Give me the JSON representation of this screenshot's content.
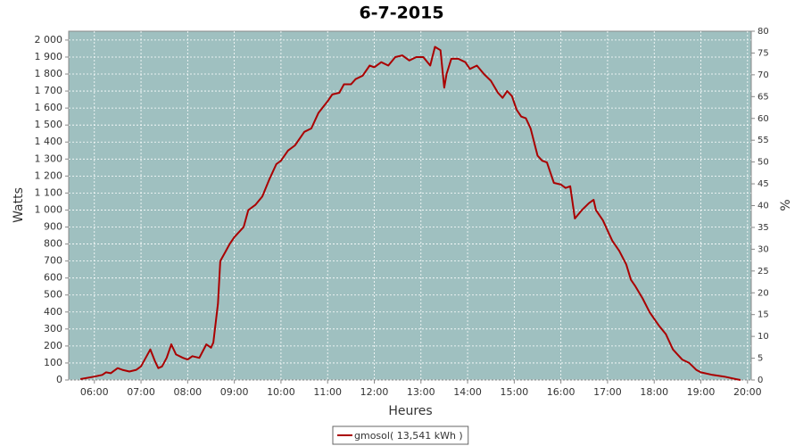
{
  "chart_data": {
    "type": "line",
    "title": "6-7-2015",
    "x_label": "Heures",
    "y_label": "Watts",
    "y2_label": "%",
    "x": [
      5.7,
      6.0,
      6.17,
      6.25,
      6.35,
      6.5,
      6.6,
      6.75,
      6.9,
      7.0,
      7.1,
      7.2,
      7.3,
      7.37,
      7.45,
      7.55,
      7.65,
      7.75,
      7.9,
      8.0,
      8.1,
      8.25,
      8.4,
      8.5,
      8.55,
      8.65,
      8.7,
      8.8,
      8.9,
      9.0,
      9.2,
      9.3,
      9.45,
      9.6,
      9.75,
      9.9,
      10.0,
      10.15,
      10.3,
      10.5,
      10.65,
      10.8,
      11.0,
      11.1,
      11.25,
      11.35,
      11.5,
      11.6,
      11.75,
      11.9,
      12.0,
      12.15,
      12.3,
      12.45,
      12.6,
      12.75,
      12.9,
      13.05,
      13.2,
      13.3,
      13.42,
      13.5,
      13.55,
      13.65,
      13.8,
      13.95,
      14.05,
      14.2,
      14.35,
      14.5,
      14.65,
      14.75,
      14.85,
      14.95,
      15.05,
      15.15,
      15.25,
      15.35,
      15.5,
      15.6,
      15.7,
      15.85,
      16.0,
      16.1,
      16.2,
      16.3,
      16.45,
      16.6,
      16.7,
      16.75,
      16.9,
      17.0,
      17.1,
      17.25,
      17.4,
      17.5,
      17.6,
      17.75,
      17.9,
      18.0,
      18.1,
      18.25,
      18.4,
      18.5,
      18.6,
      18.75,
      18.9,
      19.0,
      19.25,
      19.5,
      19.75,
      19.85
    ],
    "series": [
      {
        "name": "gmosol( 13,541 kWh )",
        "color": "#aa0000",
        "values": [
          5,
          20,
          30,
          45,
          40,
          70,
          60,
          50,
          60,
          80,
          130,
          180,
          110,
          70,
          80,
          130,
          210,
          150,
          130,
          120,
          140,
          130,
          210,
          190,
          220,
          450,
          700,
          750,
          800,
          840,
          900,
          1000,
          1030,
          1080,
          1180,
          1270,
          1290,
          1350,
          1380,
          1460,
          1480,
          1570,
          1640,
          1680,
          1690,
          1740,
          1740,
          1770,
          1790,
          1850,
          1840,
          1870,
          1850,
          1900,
          1910,
          1880,
          1900,
          1900,
          1850,
          1960,
          1940,
          1720,
          1800,
          1890,
          1890,
          1870,
          1830,
          1850,
          1800,
          1760,
          1690,
          1660,
          1700,
          1670,
          1590,
          1550,
          1540,
          1480,
          1320,
          1290,
          1280,
          1160,
          1150,
          1130,
          1140,
          950,
          1000,
          1040,
          1060,
          1000,
          940,
          880,
          820,
          760,
          680,
          590,
          550,
          480,
          400,
          360,
          320,
          270,
          180,
          150,
          120,
          100,
          60,
          45,
          30,
          20,
          5,
          0
        ]
      }
    ],
    "xlim": [
      5.45,
      20.08
    ],
    "xticks": [
      {
        "value": 6,
        "label": "06:00"
      },
      {
        "value": 7,
        "label": "07:00"
      },
      {
        "value": 8,
        "label": "08:00"
      },
      {
        "value": 9,
        "label": "09:00"
      },
      {
        "value": 10,
        "label": "10:00"
      },
      {
        "value": 11,
        "label": "11:00"
      },
      {
        "value": 12,
        "label": "12:00"
      },
      {
        "value": 13,
        "label": "13:00"
      },
      {
        "value": 14,
        "label": "14:00"
      },
      {
        "value": 15,
        "label": "15:00"
      },
      {
        "value": 16,
        "label": "16:00"
      },
      {
        "value": 17,
        "label": "17:00"
      },
      {
        "value": 18,
        "label": "18:00"
      },
      {
        "value": 19,
        "label": "19:00"
      },
      {
        "value": 20,
        "label": "20:00"
      }
    ],
    "ylim": [
      0,
      2052
    ],
    "yticks": [
      0,
      100,
      200,
      300,
      400,
      500,
      600,
      700,
      800,
      900,
      {
        "value": 1000,
        "label": "1 000"
      },
      {
        "value": 1100,
        "label": "1 100"
      },
      {
        "value": 1200,
        "label": "1 200"
      },
      {
        "value": 1300,
        "label": "1 300"
      },
      {
        "value": 1400,
        "label": "1 400"
      },
      {
        "value": 1500,
        "label": "1 500"
      },
      {
        "value": 1600,
        "label": "1 600"
      },
      {
        "value": 1700,
        "label": "1 700"
      },
      {
        "value": 1800,
        "label": "1 800"
      },
      {
        "value": 1900,
        "label": "1 900"
      },
      {
        "value": 2000,
        "label": "2 000"
      }
    ],
    "y2lim": [
      0,
      80
    ],
    "y2ticks": [
      0,
      5,
      10,
      15,
      20,
      25,
      30,
      35,
      40,
      45,
      50,
      55,
      60,
      65,
      70,
      75,
      80
    ],
    "grid": true,
    "background": "#9fc0c0"
  }
}
